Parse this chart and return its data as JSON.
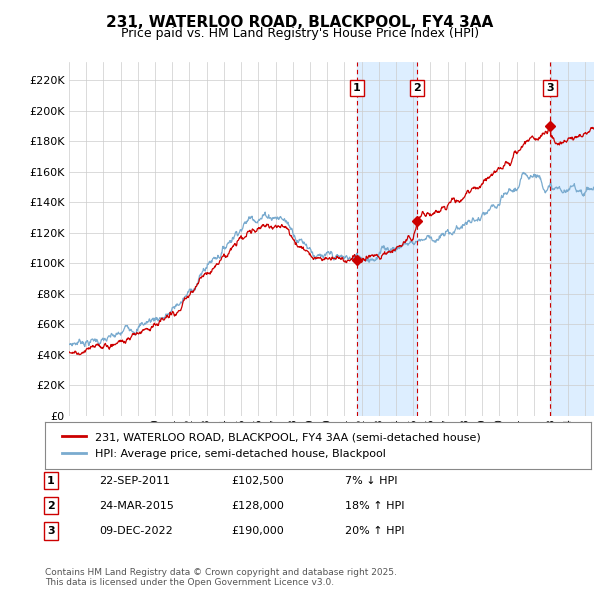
{
  "title": "231, WATERLOO ROAD, BLACKPOOL, FY4 3AA",
  "subtitle": "Price paid vs. HM Land Registry's House Price Index (HPI)",
  "ylabel_ticks": [
    "£0",
    "£20K",
    "£40K",
    "£60K",
    "£80K",
    "£100K",
    "£120K",
    "£140K",
    "£160K",
    "£180K",
    "£200K",
    "£220K"
  ],
  "ytick_vals": [
    0,
    20000,
    40000,
    60000,
    80000,
    100000,
    120000,
    140000,
    160000,
    180000,
    200000,
    220000
  ],
  "ylim": [
    0,
    232000
  ],
  "xlim_start": 1995.0,
  "xlim_end": 2025.5,
  "hpi_anchors_x": [
    1995,
    1996,
    1997,
    1998,
    1999,
    2000,
    2001,
    2002,
    2003,
    2004,
    2005,
    2006,
    2007,
    2007.5,
    2008,
    2009,
    2010,
    2011,
    2012,
    2013,
    2014,
    2015,
    2016,
    2017,
    2018,
    2019,
    2020,
    2021,
    2022,
    2023,
    2024,
    2025.5
  ],
  "hpi_anchors_y": [
    47000,
    48500,
    50000,
    53000,
    57000,
    63000,
    71000,
    83000,
    97000,
    110000,
    122000,
    128000,
    130000,
    129000,
    120000,
    110000,
    107000,
    104000,
    103000,
    106000,
    110000,
    113000,
    117000,
    122000,
    126000,
    132000,
    138000,
    148000,
    158000,
    152000,
    148000,
    150000
  ],
  "price_anchors_x": [
    1995,
    1996,
    1997,
    1998,
    1999,
    2000,
    2001,
    2002,
    2003,
    2004,
    2005,
    2006,
    2007,
    2007.5,
    2008,
    2009,
    2010,
    2011,
    2011.73,
    2012,
    2013,
    2014,
    2015,
    2015.23,
    2016,
    2017,
    2018,
    2019,
    2020,
    2021,
    2022,
    2022.94,
    2023,
    2023.5,
    2024,
    2025.5
  ],
  "price_anchors_y": [
    42000,
    43500,
    45000,
    49000,
    54000,
    60000,
    68000,
    79000,
    93000,
    106000,
    118000,
    123000,
    125000,
    124000,
    116000,
    106000,
    103000,
    101000,
    102500,
    101000,
    104000,
    110000,
    116000,
    128000,
    132000,
    138000,
    144000,
    152000,
    162000,
    172000,
    182000,
    190000,
    183000,
    178000,
    182000,
    188000
  ],
  "transactions": [
    {
      "date": 2011.73,
      "price": 102500,
      "label": "1"
    },
    {
      "date": 2015.23,
      "price": 128000,
      "label": "2"
    },
    {
      "date": 2022.94,
      "price": 190000,
      "label": "3"
    }
  ],
  "table_rows": [
    {
      "num": "1",
      "date": "22-SEP-2011",
      "price": "£102,500",
      "change": "7% ↓ HPI"
    },
    {
      "num": "2",
      "date": "24-MAR-2015",
      "price": "£128,000",
      "change": "18% ↑ HPI"
    },
    {
      "num": "3",
      "date": "09-DEC-2022",
      "price": "£190,000",
      "change": "20% ↑ HPI"
    }
  ],
  "legend_entries": [
    "231, WATERLOO ROAD, BLACKPOOL, FY4 3AA (semi-detached house)",
    "HPI: Average price, semi-detached house, Blackpool"
  ],
  "footnote": "Contains HM Land Registry data © Crown copyright and database right 2025.\nThis data is licensed under the Open Government Licence v3.0.",
  "line_color_red": "#cc0000",
  "line_color_blue": "#7aabcf",
  "shade_color": "#ddeeff",
  "background_color": "#ffffff",
  "grid_color": "#cccccc",
  "noise_scale_hpi": 800,
  "noise_scale_price": 600
}
